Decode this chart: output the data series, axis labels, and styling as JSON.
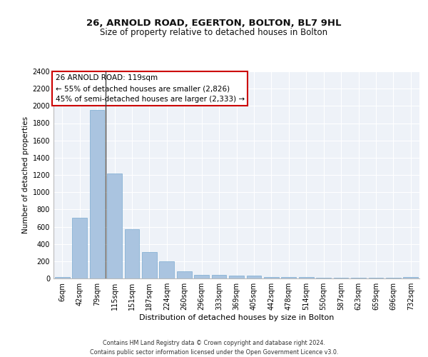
{
  "title1": "26, ARNOLD ROAD, EGERTON, BOLTON, BL7 9HL",
  "title2": "Size of property relative to detached houses in Bolton",
  "xlabel": "Distribution of detached houses by size in Bolton",
  "ylabel": "Number of detached properties",
  "categories": [
    "6sqm",
    "42sqm",
    "79sqm",
    "115sqm",
    "151sqm",
    "187sqm",
    "224sqm",
    "260sqm",
    "296sqm",
    "333sqm",
    "369sqm",
    "405sqm",
    "442sqm",
    "478sqm",
    "514sqm",
    "550sqm",
    "587sqm",
    "623sqm",
    "659sqm",
    "696sqm",
    "732sqm"
  ],
  "values": [
    15,
    700,
    1950,
    1220,
    575,
    305,
    200,
    80,
    45,
    38,
    35,
    32,
    20,
    20,
    20,
    5,
    5,
    5,
    5,
    5,
    20
  ],
  "bar_color": "#aac4e0",
  "bar_edge_color": "#7aaad0",
  "annotation_text": "26 ARNOLD ROAD: 119sqm\n← 55% of detached houses are smaller (2,826)\n45% of semi-detached houses are larger (2,333) →",
  "annotation_box_color": "#ffffff",
  "annotation_box_edge_color": "#cc0000",
  "vline_x_index": 3,
  "vline_color": "#444444",
  "ylim": [
    0,
    2400
  ],
  "yticks": [
    0,
    200,
    400,
    600,
    800,
    1000,
    1200,
    1400,
    1600,
    1800,
    2000,
    2200,
    2400
  ],
  "footer_line1": "Contains HM Land Registry data © Crown copyright and database right 2024.",
  "footer_line2": "Contains public sector information licensed under the Open Government Licence v3.0.",
  "bg_color": "#eef2f8",
  "grid_color": "#ffffff",
  "title1_fontsize": 9.5,
  "title2_fontsize": 8.5,
  "xlabel_fontsize": 8.0,
  "ylabel_fontsize": 7.5,
  "tick_fontsize": 7.0,
  "annotation_fontsize": 7.5,
  "footer_fontsize": 5.8
}
